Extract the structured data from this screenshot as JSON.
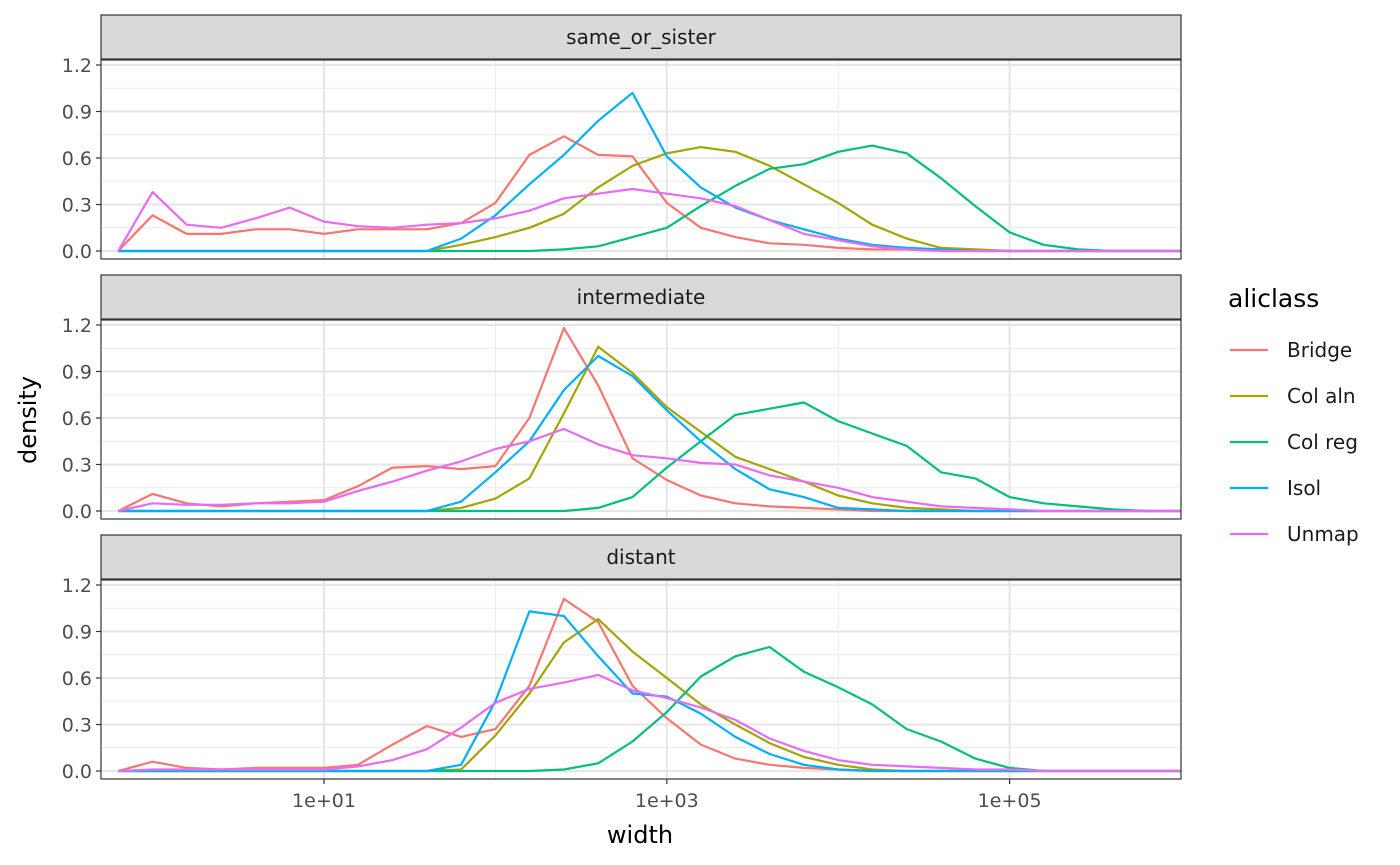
{
  "chart_data": {
    "type": "line",
    "facet_var": "panel",
    "xlabel": "width",
    "ylabel": "density",
    "x_scale": "log10",
    "x_ticks": [
      10,
      1000,
      100000
    ],
    "x_tick_labels": [
      "1e+01",
      "1e+03",
      "1e+05"
    ],
    "xlim": [
      0.5,
      1000000
    ],
    "ylim": [
      0,
      1.2
    ],
    "y_ticks": [
      0,
      0.3,
      0.6,
      0.9,
      1.2
    ],
    "y_tick_labels": [
      "0.0",
      "0.3",
      "0.6",
      "0.9",
      "1.2"
    ],
    "grid": true,
    "legend": {
      "title": "aliclass",
      "placement": "right",
      "entries": [
        "Bridge",
        "Col aln",
        "Col reg",
        "Isol",
        "Unmap"
      ]
    },
    "colors": {
      "Bridge": "#F8766D",
      "Col aln": "#A3A500",
      "Col reg": "#00BF7D",
      "Isol": "#00B0F6",
      "Unmap": "#E76BF3"
    },
    "panels": [
      {
        "label": "same_or_sister",
        "series": [
          {
            "name": "Bridge",
            "x": [
              0.63,
              1,
              1.58,
              2.51,
              3.98,
              6.31,
              10,
              15.8,
              25.1,
              39.8,
              63.1,
              100,
              158,
              251,
              398,
              631,
              1000,
              1580,
              2510,
              3980,
              6310,
              10000,
              15800,
              25100,
              39800,
              63100,
              100000,
              158000,
              251000,
              398000,
              631000,
              1000000
            ],
            "y": [
              0.0,
              0.23,
              0.11,
              0.11,
              0.14,
              0.14,
              0.11,
              0.14,
              0.14,
              0.14,
              0.18,
              0.31,
              0.62,
              0.74,
              0.62,
              0.61,
              0.31,
              0.15,
              0.09,
              0.05,
              0.04,
              0.02,
              0.01,
              0.01,
              0.0,
              0.0,
              0.0,
              0.0,
              0.0,
              0.0,
              0.0,
              0.0
            ]
          },
          {
            "name": "Col aln",
            "x": [
              0.63,
              10,
              39.8,
              63.1,
              100,
              158,
              251,
              398,
              631,
              1000,
              1580,
              2510,
              3980,
              6310,
              10000,
              15800,
              25100,
              39800,
              63100,
              100000,
              158000,
              251000,
              398000,
              631000,
              1000000
            ],
            "y": [
              0.0,
              0.0,
              0.0,
              0.04,
              0.09,
              0.15,
              0.24,
              0.41,
              0.55,
              0.63,
              0.67,
              0.64,
              0.55,
              0.43,
              0.31,
              0.17,
              0.08,
              0.02,
              0.01,
              0.0,
              0.0,
              0.0,
              0.0,
              0.0,
              0.0
            ]
          },
          {
            "name": "Col reg",
            "x": [
              0.63,
              10,
              100,
              158,
              251,
              398,
              631,
              1000,
              1580,
              2510,
              3980,
              6310,
              10000,
              15800,
              25100,
              39800,
              63100,
              100000,
              158000,
              251000,
              398000,
              631000,
              1000000
            ],
            "y": [
              0.0,
              0.0,
              0.0,
              0.0,
              0.01,
              0.03,
              0.09,
              0.15,
              0.29,
              0.42,
              0.53,
              0.56,
              0.64,
              0.68,
              0.63,
              0.47,
              0.29,
              0.12,
              0.04,
              0.01,
              0.0,
              0.0,
              0.0
            ]
          },
          {
            "name": "Isol",
            "x": [
              0.63,
              10,
              39.8,
              63.1,
              100,
              158,
              251,
              398,
              631,
              1000,
              1580,
              2510,
              3980,
              6310,
              10000,
              15800,
              25100,
              39800,
              63100,
              100000,
              158000,
              251000,
              398000,
              631000,
              1000000
            ],
            "y": [
              0.0,
              0.0,
              0.0,
              0.08,
              0.23,
              0.43,
              0.62,
              0.84,
              1.02,
              0.61,
              0.41,
              0.28,
              0.2,
              0.14,
              0.08,
              0.04,
              0.02,
              0.01,
              0.0,
              0.0,
              0.0,
              0.0,
              0.0,
              0.0,
              0.0
            ]
          },
          {
            "name": "Unmap",
            "x": [
              0.63,
              1,
              1.58,
              2.51,
              3.98,
              6.31,
              10,
              15.8,
              25.1,
              39.8,
              63.1,
              100,
              158,
              251,
              398,
              631,
              1000,
              1580,
              2510,
              3980,
              6310,
              10000,
              15800,
              25100,
              39800,
              63100,
              100000,
              158000,
              251000,
              398000,
              631000,
              1000000
            ],
            "y": [
              0.0,
              0.38,
              0.17,
              0.15,
              0.21,
              0.28,
              0.19,
              0.16,
              0.15,
              0.17,
              0.18,
              0.21,
              0.26,
              0.34,
              0.37,
              0.4,
              0.37,
              0.34,
              0.29,
              0.2,
              0.11,
              0.07,
              0.03,
              0.01,
              0.0,
              0.0,
              0.0,
              0.0,
              0.0,
              0.0,
              0.0,
              0.0
            ]
          }
        ]
      },
      {
        "label": "intermediate",
        "series": [
          {
            "name": "Bridge",
            "x": [
              0.63,
              1,
              1.58,
              2.51,
              3.98,
              6.31,
              10,
              15.8,
              25.1,
              39.8,
              63.1,
              100,
              158,
              251,
              398,
              631,
              1000,
              1580,
              2510,
              3980,
              6310,
              10000,
              15800,
              25100,
              39800,
              63100,
              100000,
              158000,
              251000,
              398000,
              631000,
              1000000
            ],
            "y": [
              0.0,
              0.11,
              0.05,
              0.03,
              0.05,
              0.06,
              0.07,
              0.16,
              0.28,
              0.29,
              0.27,
              0.29,
              0.6,
              1.18,
              0.81,
              0.34,
              0.2,
              0.1,
              0.05,
              0.03,
              0.02,
              0.01,
              0.0,
              0.0,
              0.0,
              0.0,
              0.0,
              0.0,
              0.0,
              0.0,
              0.0,
              0.0
            ]
          },
          {
            "name": "Col aln",
            "x": [
              0.63,
              10,
              39.8,
              63.1,
              100,
              158,
              251,
              398,
              631,
              1000,
              1580,
              2510,
              3980,
              6310,
              10000,
              15800,
              25100,
              39800,
              63100,
              100000,
              158000,
              251000,
              398000,
              631000,
              1000000
            ],
            "y": [
              0.0,
              0.0,
              0.0,
              0.02,
              0.08,
              0.21,
              0.63,
              1.06,
              0.89,
              0.67,
              0.51,
              0.35,
              0.27,
              0.19,
              0.1,
              0.05,
              0.02,
              0.01,
              0.0,
              0.0,
              0.0,
              0.0,
              0.0,
              0.0,
              0.0
            ]
          },
          {
            "name": "Col reg",
            "x": [
              0.63,
              10,
              100,
              158,
              251,
              398,
              631,
              1000,
              1580,
              2510,
              3980,
              6310,
              10000,
              15800,
              25100,
              39800,
              63100,
              100000,
              158000,
              251000,
              398000,
              631000,
              1000000
            ],
            "y": [
              0.0,
              0.0,
              0.0,
              0.0,
              0.0,
              0.02,
              0.09,
              0.28,
              0.45,
              0.62,
              0.66,
              0.7,
              0.58,
              0.5,
              0.42,
              0.25,
              0.21,
              0.09,
              0.05,
              0.03,
              0.01,
              0.0,
              0.0
            ]
          },
          {
            "name": "Isol",
            "x": [
              0.63,
              1,
              10,
              39.8,
              63.1,
              100,
              158,
              251,
              398,
              631,
              1000,
              1580,
              2510,
              3980,
              6310,
              10000,
              15800,
              25100,
              39800,
              63100,
              100000,
              158000,
              251000,
              398000,
              631000,
              1000000
            ],
            "y": [
              0.0,
              0.0,
              0.0,
              0.0,
              0.06,
              0.25,
              0.45,
              0.78,
              1.0,
              0.87,
              0.65,
              0.45,
              0.27,
              0.14,
              0.09,
              0.02,
              0.01,
              0.0,
              0.0,
              0.0,
              0.0,
              0.0,
              0.0,
              0.0,
              0.0,
              0.0
            ]
          },
          {
            "name": "Unmap",
            "x": [
              0.63,
              1,
              1.58,
              2.51,
              3.98,
              6.31,
              10,
              15.8,
              25.1,
              39.8,
              63.1,
              100,
              158,
              251,
              398,
              631,
              1000,
              1580,
              2510,
              3980,
              6310,
              10000,
              15800,
              25100,
              39800,
              63100,
              100000,
              158000,
              251000,
              398000,
              631000,
              1000000
            ],
            "y": [
              0.0,
              0.05,
              0.04,
              0.04,
              0.05,
              0.05,
              0.06,
              0.13,
              0.19,
              0.26,
              0.32,
              0.4,
              0.45,
              0.53,
              0.43,
              0.36,
              0.34,
              0.31,
              0.3,
              0.23,
              0.19,
              0.15,
              0.09,
              0.06,
              0.03,
              0.02,
              0.01,
              0.0,
              0.0,
              0.0,
              0.0,
              0.0
            ]
          }
        ]
      },
      {
        "label": "distant",
        "series": [
          {
            "name": "Bridge",
            "x": [
              0.63,
              1,
              1.58,
              2.51,
              3.98,
              6.31,
              10,
              15.8,
              25.1,
              39.8,
              63.1,
              100,
              158,
              251,
              398,
              631,
              1000,
              1580,
              2510,
              3980,
              6310,
              10000,
              15800,
              25100,
              39800,
              63100,
              100000,
              158000,
              251000,
              398000,
              631000,
              1000000
            ],
            "y": [
              0.0,
              0.06,
              0.02,
              0.01,
              0.02,
              0.02,
              0.02,
              0.04,
              0.17,
              0.29,
              0.22,
              0.27,
              0.55,
              1.11,
              0.96,
              0.55,
              0.34,
              0.17,
              0.08,
              0.04,
              0.02,
              0.01,
              0.0,
              0.0,
              0.0,
              0.0,
              0.0,
              0.0,
              0.0,
              0.0,
              0.0,
              0.0
            ]
          },
          {
            "name": "Col aln",
            "x": [
              0.63,
              10,
              39.8,
              63.1,
              100,
              158,
              251,
              398,
              631,
              1000,
              1580,
              2510,
              3980,
              6310,
              10000,
              15800,
              25100,
              39800,
              63100,
              100000,
              158000,
              251000,
              398000,
              631000,
              1000000
            ],
            "y": [
              0.0,
              0.0,
              0.0,
              0.01,
              0.23,
              0.5,
              0.83,
              0.98,
              0.77,
              0.6,
              0.43,
              0.3,
              0.18,
              0.09,
              0.04,
              0.01,
              0.0,
              0.0,
              0.0,
              0.0,
              0.0,
              0.0,
              0.0,
              0.0,
              0.0
            ]
          },
          {
            "name": "Col reg",
            "x": [
              0.63,
              10,
              100,
              158,
              251,
              398,
              631,
              1000,
              1580,
              2510,
              3980,
              6310,
              10000,
              15800,
              25100,
              39800,
              63100,
              100000,
              158000,
              251000,
              398000,
              631000,
              1000000
            ],
            "y": [
              0.0,
              0.0,
              0.0,
              0.0,
              0.01,
              0.05,
              0.19,
              0.38,
              0.61,
              0.74,
              0.8,
              0.64,
              0.54,
              0.43,
              0.27,
              0.19,
              0.08,
              0.02,
              0.0,
              0.0,
              0.0,
              0.0,
              0.0
            ]
          },
          {
            "name": "Isol",
            "x": [
              0.63,
              1,
              10,
              39.8,
              63.1,
              100,
              158,
              251,
              398,
              631,
              1000,
              1580,
              2510,
              3980,
              6310,
              10000,
              15800,
              25100,
              39800,
              63100,
              100000,
              158000,
              251000,
              398000,
              631000,
              1000000
            ],
            "y": [
              0.0,
              0.0,
              0.0,
              0.0,
              0.04,
              0.45,
              1.03,
              1.0,
              0.74,
              0.5,
              0.48,
              0.37,
              0.22,
              0.11,
              0.04,
              0.01,
              0.0,
              0.0,
              0.0,
              0.0,
              0.0,
              0.0,
              0.0,
              0.0,
              0.0,
              0.0
            ]
          },
          {
            "name": "Unmap",
            "x": [
              0.63,
              1,
              1.58,
              2.51,
              3.98,
              6.31,
              10,
              15.8,
              25.1,
              39.8,
              63.1,
              100,
              158,
              251,
              398,
              631,
              1000,
              1580,
              2510,
              3980,
              6310,
              10000,
              15800,
              25100,
              39800,
              63100,
              100000,
              158000,
              251000,
              398000,
              631000,
              1000000
            ],
            "y": [
              0.0,
              0.01,
              0.01,
              0.01,
              0.01,
              0.01,
              0.01,
              0.03,
              0.07,
              0.14,
              0.28,
              0.44,
              0.53,
              0.57,
              0.62,
              0.52,
              0.47,
              0.41,
              0.33,
              0.21,
              0.13,
              0.07,
              0.04,
              0.03,
              0.02,
              0.01,
              0.01,
              0.0,
              0.0,
              0.0,
              0.0,
              0.0
            ]
          }
        ]
      }
    ]
  }
}
